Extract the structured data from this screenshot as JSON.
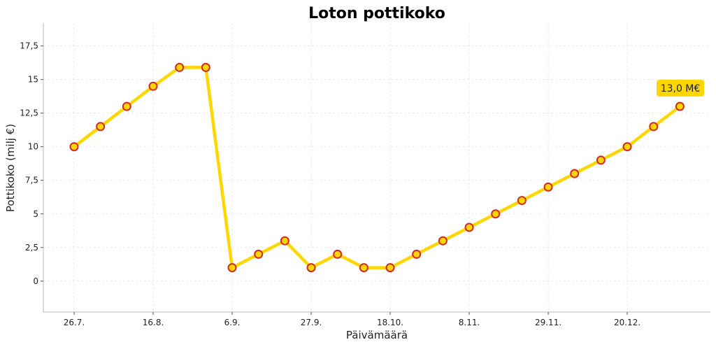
{
  "chart_data": {
    "type": "line",
    "title": "Loton pottikoko",
    "xlabel": "Päivämäärä",
    "ylabel": "Pottikoko (milj €)",
    "x_tick_labels": [
      "26.7.",
      "16.8.",
      "6.9.",
      "27.9.",
      "18.10.",
      "8.11.",
      "29.11.",
      "20.12."
    ],
    "y_tick_labels": [
      "0",
      "2,5",
      "5",
      "7,5",
      "10",
      "12,5",
      "15",
      "17,5"
    ],
    "y_ticks": [
      0,
      2.5,
      5,
      7.5,
      10,
      12.5,
      15,
      17.5
    ],
    "ylim": [
      -2.3,
      19.2
    ],
    "grid": true,
    "line_color": "#FFD700",
    "marker_fill": "#FFD700",
    "marker_edge": "#D62728",
    "annotation_bg": "#FFD700",
    "series": [
      {
        "x": [
          "26.7.",
          "2.8.",
          "9.8.",
          "16.8.",
          "23.8.",
          "30.8.",
          "6.9.",
          "13.9.",
          "20.9.",
          "27.9.",
          "4.10.",
          "11.10.",
          "18.10.",
          "25.10.",
          "1.11.",
          "8.11.",
          "15.11.",
          "22.11.",
          "29.11.",
          "6.12.",
          "13.12.",
          "20.12.",
          "27.12.",
          "3.1."
        ],
        "values": [
          10,
          11.5,
          13,
          14.5,
          15.9,
          15.9,
          1,
          2,
          3,
          1,
          2,
          1,
          1,
          2,
          3,
          4,
          5,
          6,
          7,
          8,
          9,
          10,
          11.5,
          13
        ]
      }
    ],
    "annotation": {
      "text": "13,0 M€"
    }
  }
}
